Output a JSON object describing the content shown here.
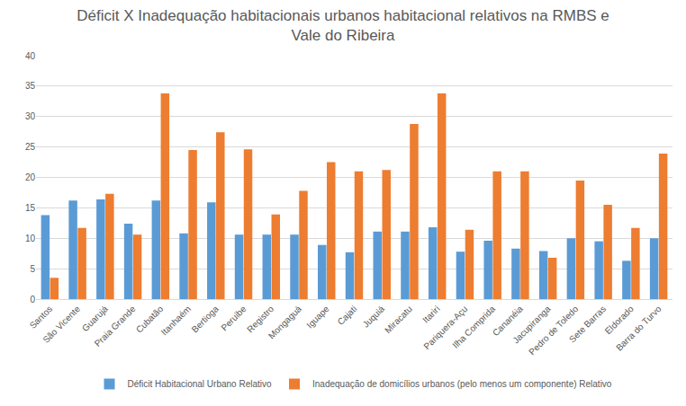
{
  "chart_data": {
    "type": "bar",
    "title": "Déficit X Inadequação habitacionais urbanos habitacional relativos na RMBS e\nVale do Ribeira",
    "categories": [
      "Santos",
      "São Vicente",
      "Guarujá",
      "Praia Grande",
      "Cubatão",
      "Itanhaém",
      "Bertioga",
      "Peruibe",
      "Registro",
      "Mongaguá",
      "Iguape",
      "Cajati",
      "Juquiá",
      "Miracatu",
      "Itariri",
      "Pariquera-Açu",
      "Ilha Comprida",
      "Cananéia",
      "Jacupiranga",
      "Pedro de Toledo",
      "Sete Barras",
      "Eldorado",
      "Barra do Turvo"
    ],
    "series": [
      {
        "name": "Déficit Habitacional Urbano Relativo",
        "color": "#5b9bd5",
        "values": [
          13.8,
          16.2,
          16.4,
          12.4,
          16.2,
          10.8,
          15.9,
          10.6,
          10.6,
          10.6,
          8.9,
          7.7,
          11.1,
          11.1,
          11.8,
          7.8,
          9.6,
          8.3,
          7.9,
          10.0,
          9.5,
          6.3,
          10.0
        ]
      },
      {
        "name": "Inadequação de domicílios urbanos (pelo menos um componente) Relativo",
        "color": "#ed7d31",
        "values": [
          3.5,
          11.7,
          17.3,
          10.6,
          33.8,
          24.5,
          27.4,
          24.6,
          13.9,
          17.8,
          22.5,
          21.0,
          21.2,
          28.8,
          33.8,
          11.4,
          21.0,
          21.0,
          6.8,
          19.5,
          15.5,
          11.7,
          23.9
        ]
      }
    ],
    "ylim": [
      0,
      40
    ],
    "yticks": [
      0,
      5,
      10,
      15,
      20,
      25,
      30,
      35,
      40
    ],
    "grid": true,
    "legend": "bottom"
  }
}
